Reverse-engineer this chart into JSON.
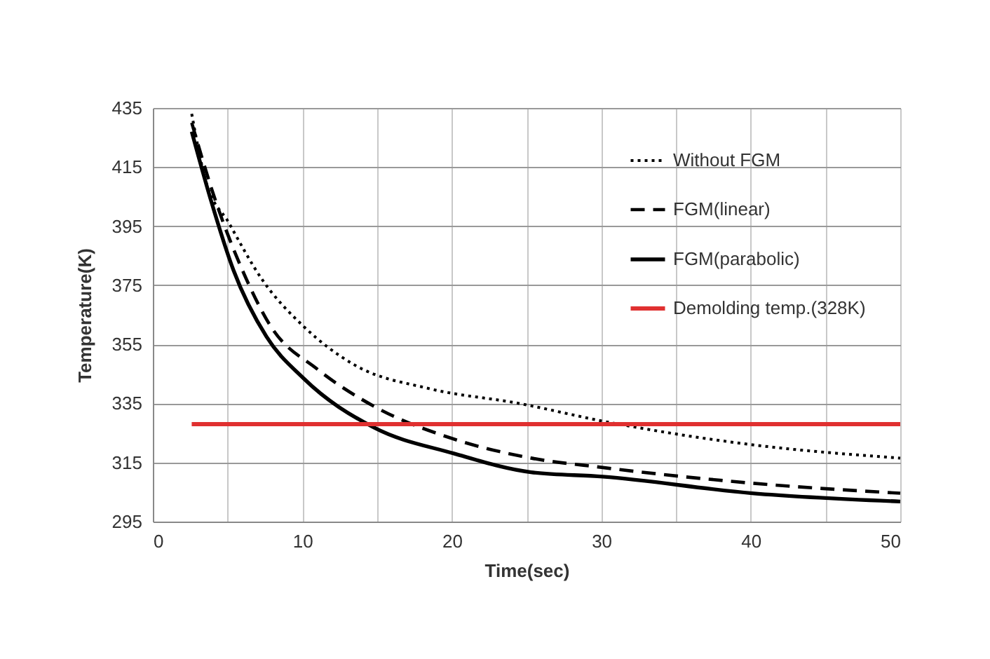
{
  "chart_data": {
    "type": "line",
    "xlabel": "Time(sec)",
    "ylabel": "Temperature(K)",
    "xlim": [
      0,
      50
    ],
    "ylim": [
      295,
      435
    ],
    "xticks": [
      0,
      {
        "value": 5,
        "label": null
      },
      10,
      {
        "value": 15,
        "label": null
      },
      20,
      {
        "value": 25,
        "label": null
      },
      30,
      {
        "value": 35,
        "label": null
      },
      40,
      {
        "value": 45,
        "label": null
      },
      50
    ],
    "yticks": [
      295,
      315,
      335,
      355,
      375,
      395,
      415,
      435
    ],
    "grid": true,
    "legend": "top right",
    "marker": "none",
    "series": [
      {
        "name": "Without FGM",
        "color": "#000000",
        "line_style": "dotted",
        "x": [
          2.6,
          3.5,
          5.1,
          7.3,
          10.1,
          13.5,
          18.5,
          24.5,
          30.1,
          40.1,
          50
        ],
        "values": [
          433,
          411,
          396,
          377,
          361,
          348,
          340,
          335,
          329,
          321,
          316.5
        ]
      },
      {
        "name": "FGM(linear)",
        "color": "#000000",
        "line_style": "dashed",
        "x": [
          2.6,
          4.2,
          6,
          7.9,
          11,
          14.8,
          20.1,
          25.3,
          30.1,
          40.1,
          50
        ],
        "values": [
          430,
          403.5,
          380,
          361,
          346.6,
          334,
          323,
          316.5,
          313.3,
          308,
          304.6
        ]
      },
      {
        "name": "FGM(parabolic)",
        "color": "#000000",
        "line_style": "solid",
        "x": [
          2.6,
          3.9,
          5.4,
          7.6,
          10.1,
          14.8,
          20.1,
          25.3,
          30.1,
          40.1,
          50
        ],
        "values": [
          427,
          403.5,
          380,
          357.6,
          343.4,
          326.8,
          318.1,
          311.7,
          310.2,
          304.6,
          301.8
        ]
      },
      {
        "name": "Demolding temp.(328K)",
        "color": "#e03030",
        "line_style": "solid",
        "x": [
          2.6,
          50
        ],
        "values": [
          328,
          328
        ]
      }
    ]
  }
}
